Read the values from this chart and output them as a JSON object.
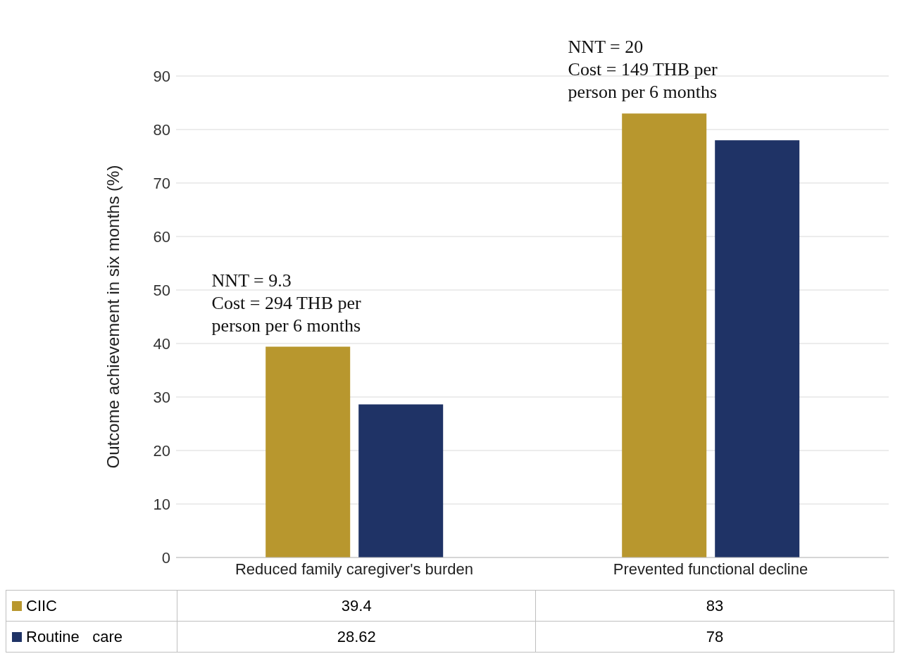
{
  "chart_data": {
    "type": "bar",
    "ylabel": "Outcome achievement in six months (%)",
    "categories": [
      "Reduced family caregiver's burden",
      "Prevented functional decline"
    ],
    "series": [
      {
        "name": "CIIC",
        "color": "#b8972e",
        "values": [
          39.4,
          83
        ]
      },
      {
        "name": "Routine   care",
        "color": "#1f3366",
        "values": [
          28.62,
          78
        ]
      }
    ],
    "ylim": [
      0,
      90
    ],
    "yticks": [
      0,
      10,
      20,
      30,
      40,
      50,
      60,
      70,
      80,
      90
    ],
    "grid": "y",
    "legend": "bottom",
    "data_labels": true,
    "annotations": [
      "NNT = 9.3\nCost = 294 THB per\nperson per 6 months",
      "NNT = 20\nCost = 149 THB per\nperson per 6 months"
    ]
  }
}
